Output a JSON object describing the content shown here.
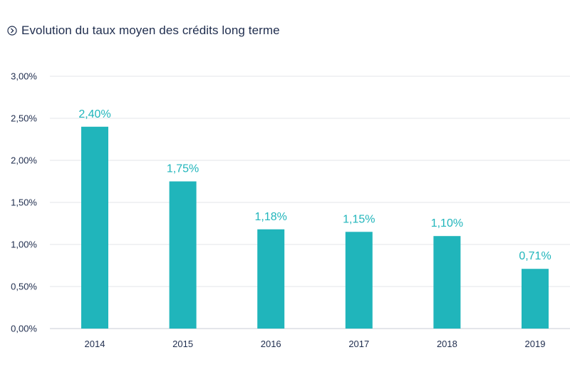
{
  "header": {
    "icon": "circle-chevron-right-icon",
    "title": "Evolution du taux moyen des crédits long terme"
  },
  "colors": {
    "bar": "#20b5bb",
    "grid": "#e3e6ea",
    "text": "#1f2d4e",
    "accent": "#20b5bb"
  },
  "chart_data": {
    "type": "bar",
    "title": "Evolution du taux moyen des crédits long terme",
    "categories": [
      "2014",
      "2015",
      "2016",
      "2017",
      "2018",
      "2019"
    ],
    "values": [
      2.4,
      1.75,
      1.18,
      1.15,
      1.1,
      0.71
    ],
    "data_labels": [
      "2,40%",
      "1,75%",
      "1,18%",
      "1,15%",
      "1,10%",
      "0,71%"
    ],
    "yticks": [
      0,
      0.5,
      1.0,
      1.5,
      2.0,
      2.5,
      3.0
    ],
    "ytick_labels": [
      "0,00%",
      "0,50%",
      "1,00%",
      "1,50%",
      "2,00%",
      "2,50%",
      "3,00%"
    ],
    "ylim": [
      0,
      3.0
    ],
    "xlabel": "",
    "ylabel": "",
    "grid": true,
    "legend": "none"
  }
}
